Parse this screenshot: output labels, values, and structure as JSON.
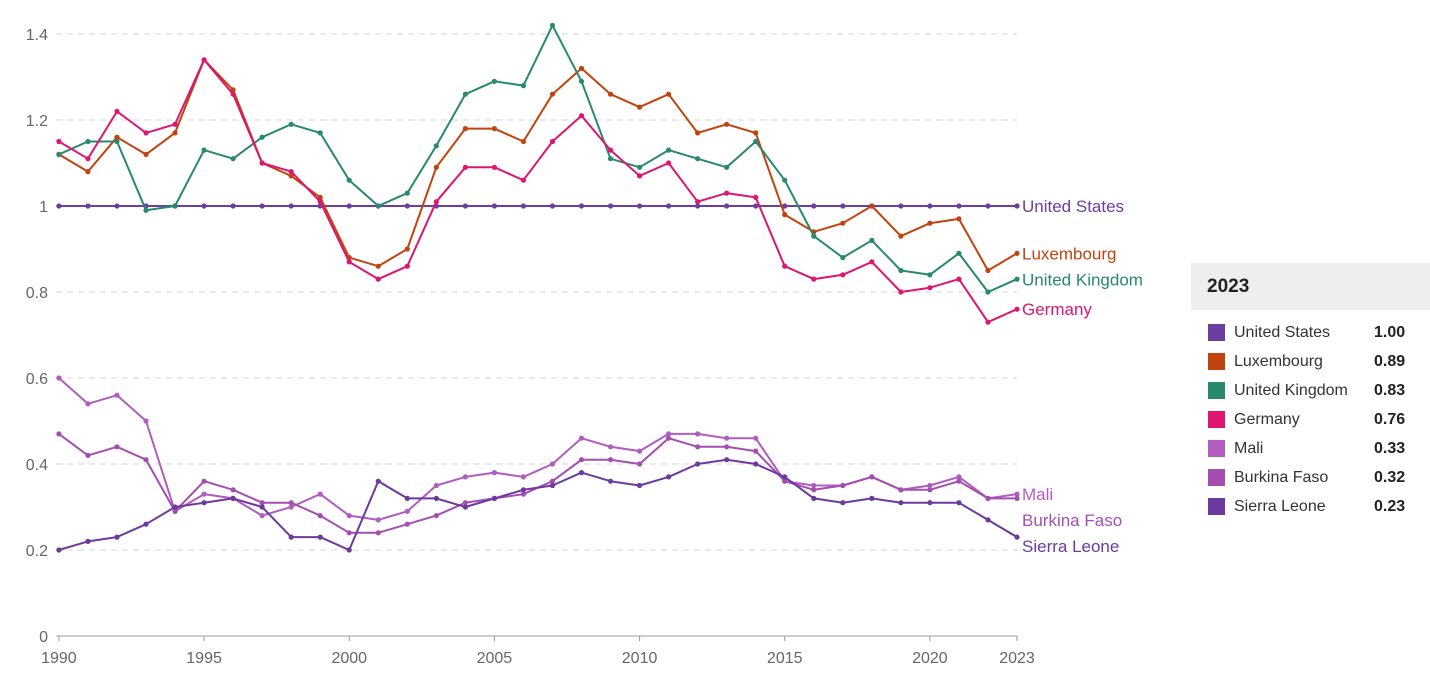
{
  "chart_data": {
    "type": "line",
    "title": "",
    "xlabel": "",
    "ylabel": "",
    "xlim": [
      1989.9,
      2023
    ],
    "ylim": [
      0,
      1.4
    ],
    "grid": "horizontal dashed",
    "legend_placement": "right",
    "x_ticks": [
      "1990",
      "1995",
      "2000",
      "2005",
      "2010",
      "2015",
      "2020",
      "2023"
    ],
    "y_ticks": [
      "0",
      "0.2",
      "0.4",
      "0.6",
      "0.8",
      "1",
      "1.2",
      "1.4"
    ],
    "x": [
      1990,
      1991,
      1992,
      1993,
      1994,
      1995,
      1996,
      1997,
      1998,
      1999,
      2000,
      2001,
      2002,
      2003,
      2004,
      2005,
      2006,
      2007,
      2008,
      2009,
      2010,
      2011,
      2012,
      2013,
      2014,
      2015,
      2016,
      2017,
      2018,
      2019,
      2020,
      2021,
      2022,
      2023
    ],
    "series": [
      {
        "name": "United States",
        "color": "#6b3fa0",
        "values": [
          1,
          1,
          1,
          1,
          1,
          1,
          1,
          1,
          1,
          1,
          1,
          1,
          1,
          1,
          1,
          1,
          1,
          1,
          1,
          1,
          1,
          1,
          1,
          1,
          1,
          1,
          1,
          1,
          1,
          1,
          1,
          1,
          1,
          1
        ]
      },
      {
        "name": "Luxembourg",
        "color": "#c0440f",
        "values": [
          1.12,
          1.08,
          1.16,
          1.12,
          1.17,
          1.34,
          1.27,
          1.1,
          1.07,
          1.02,
          0.88,
          0.86,
          0.9,
          1.09,
          1.18,
          1.18,
          1.15,
          1.26,
          1.32,
          1.26,
          1.23,
          1.26,
          1.17,
          1.19,
          1.17,
          0.98,
          0.94,
          0.96,
          1.0,
          0.93,
          0.96,
          0.97,
          0.85,
          0.89
        ]
      },
      {
        "name": "United Kingdom",
        "color": "#288a6b",
        "values": [
          1.12,
          1.15,
          1.15,
          0.99,
          1.0,
          1.13,
          1.11,
          1.16,
          1.19,
          1.17,
          1.06,
          1.0,
          1.03,
          1.14,
          1.26,
          1.29,
          1.28,
          1.42,
          1.29,
          1.11,
          1.09,
          1.13,
          1.11,
          1.09,
          1.15,
          1.06,
          0.93,
          0.88,
          0.92,
          0.85,
          0.84,
          0.89,
          0.8,
          0.83
        ]
      },
      {
        "name": "Germany",
        "color": "#dd1670",
        "values": [
          1.15,
          1.11,
          1.22,
          1.17,
          1.19,
          1.34,
          1.26,
          1.1,
          1.08,
          1.01,
          0.87,
          0.83,
          0.86,
          1.01,
          1.09,
          1.09,
          1.06,
          1.15,
          1.21,
          1.13,
          1.07,
          1.1,
          1.01,
          1.03,
          1.02,
          0.86,
          0.83,
          0.84,
          0.87,
          0.8,
          0.81,
          0.83,
          0.73,
          0.76
        ]
      },
      {
        "name": "Mali",
        "color": "#b05cc0",
        "values": [
          0.6,
          0.54,
          0.56,
          0.5,
          0.29,
          0.33,
          0.32,
          0.28,
          0.3,
          0.33,
          0.28,
          0.27,
          0.29,
          0.35,
          0.37,
          0.38,
          0.37,
          0.4,
          0.46,
          0.44,
          0.43,
          0.47,
          0.47,
          0.46,
          0.46,
          0.36,
          0.35,
          0.35,
          0.37,
          0.34,
          0.35,
          0.37,
          0.32,
          0.33
        ]
      },
      {
        "name": "Burkina Faso",
        "color": "#a44fb0",
        "values": [
          0.47,
          0.42,
          0.44,
          0.41,
          0.29,
          0.36,
          0.34,
          0.31,
          0.31,
          0.28,
          0.24,
          0.24,
          0.26,
          0.28,
          0.31,
          0.32,
          0.33,
          0.36,
          0.41,
          0.41,
          0.4,
          0.46,
          0.44,
          0.44,
          0.43,
          0.36,
          0.34,
          0.35,
          0.37,
          0.34,
          0.34,
          0.36,
          0.32,
          0.32
        ]
      },
      {
        "name": "Sierra Leone",
        "color": "#6c3a9e",
        "values": [
          0.2,
          0.22,
          0.23,
          0.26,
          0.3,
          0.31,
          0.32,
          0.3,
          0.23,
          0.23,
          0.2,
          0.36,
          0.32,
          0.32,
          0.3,
          0.32,
          0.34,
          0.35,
          0.38,
          0.36,
          0.35,
          0.37,
          0.4,
          0.41,
          0.4,
          0.37,
          0.32,
          0.31,
          0.32,
          0.31,
          0.31,
          0.31,
          0.27,
          0.23
        ]
      }
    ]
  },
  "legend": {
    "header": "2023",
    "rows": [
      {
        "name": "United States",
        "value": "1.00",
        "color": "#6b3fa0"
      },
      {
        "name": "Luxembourg",
        "value": "0.89",
        "color": "#c0440f"
      },
      {
        "name": "United Kingdom",
        "value": "0.83",
        "color": "#288a6b"
      },
      {
        "name": "Germany",
        "value": "0.76",
        "color": "#dd1670"
      },
      {
        "name": "Mali",
        "value": "0.33",
        "color": "#b05cc0"
      },
      {
        "name": "Burkina Faso",
        "value": "0.32",
        "color": "#a44fb0"
      },
      {
        "name": "Sierra Leone",
        "value": "0.23",
        "color": "#6c3a9e"
      }
    ]
  }
}
